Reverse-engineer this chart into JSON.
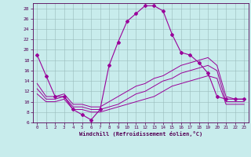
{
  "xlabel": "Windchill (Refroidissement éolien,°C)",
  "bg_color": "#c8ecec",
  "line_color": "#990099",
  "xlim": [
    -0.5,
    23.5
  ],
  "ylim": [
    6,
    29
  ],
  "yticks": [
    6,
    8,
    10,
    12,
    14,
    16,
    18,
    20,
    22,
    24,
    26,
    28
  ],
  "xticks": [
    0,
    1,
    2,
    3,
    4,
    5,
    6,
    7,
    8,
    9,
    10,
    11,
    12,
    13,
    14,
    15,
    16,
    17,
    18,
    19,
    20,
    21,
    22,
    23
  ],
  "series1_x": [
    0,
    1,
    2,
    3,
    4,
    5,
    6,
    7,
    8,
    9,
    10,
    11,
    12,
    13,
    14,
    15,
    16,
    17,
    18,
    19,
    20,
    21,
    22,
    23
  ],
  "series1_y": [
    19.0,
    15.0,
    11.0,
    11.0,
    8.5,
    7.5,
    6.5,
    8.5,
    17.0,
    21.5,
    25.5,
    27.0,
    28.5,
    28.5,
    27.5,
    23.0,
    19.5,
    19.0,
    17.5,
    15.5,
    11.0,
    10.5,
    10.5,
    10.5
  ],
  "series2_x": [
    0,
    1,
    2,
    3,
    4,
    5,
    6,
    7,
    8,
    9,
    10,
    11,
    12,
    13,
    14,
    15,
    16,
    17,
    18,
    19,
    20,
    21,
    22,
    23
  ],
  "series2_y": [
    13.5,
    11.0,
    11.0,
    11.5,
    9.5,
    9.5,
    9.0,
    9.0,
    10.0,
    11.0,
    12.0,
    13.0,
    13.5,
    14.5,
    15.0,
    16.0,
    17.0,
    17.5,
    18.0,
    18.5,
    17.0,
    11.0,
    10.5,
    10.5
  ],
  "series3_x": [
    0,
    1,
    2,
    3,
    4,
    5,
    6,
    7,
    8,
    9,
    10,
    11,
    12,
    13,
    14,
    15,
    16,
    17,
    18,
    19,
    20,
    21,
    22,
    23
  ],
  "series3_y": [
    12.5,
    10.5,
    10.5,
    11.0,
    9.0,
    9.0,
    8.5,
    8.5,
    9.0,
    9.5,
    10.5,
    11.5,
    12.0,
    13.0,
    14.0,
    14.5,
    15.5,
    16.0,
    16.5,
    17.0,
    16.0,
    10.0,
    10.0,
    10.0
  ],
  "series4_x": [
    0,
    1,
    2,
    3,
    4,
    5,
    6,
    7,
    8,
    9,
    10,
    11,
    12,
    13,
    14,
    15,
    16,
    17,
    18,
    19,
    20,
    21,
    22,
    23
  ],
  "series4_y": [
    11.5,
    10.0,
    10.0,
    10.5,
    8.5,
    8.5,
    8.0,
    8.0,
    8.5,
    9.0,
    9.5,
    10.0,
    10.5,
    11.0,
    12.0,
    13.0,
    13.5,
    14.0,
    14.5,
    15.0,
    14.5,
    9.5,
    9.5,
    9.5
  ]
}
